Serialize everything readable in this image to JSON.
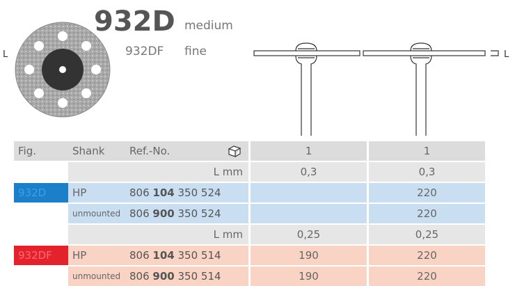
{
  "product": {
    "code": "932D",
    "grade": "medium",
    "variant_code": "932DF",
    "variant_grade": "fine",
    "dimension_label": "L"
  },
  "table": {
    "header": [
      "Fig.",
      "Shank",
      "Ref.-No.",
      "1",
      "1"
    ],
    "rows": [
      {
        "label": "L mm",
        "cells": [
          "0,3",
          "0,3"
        ]
      },
      {
        "fig": "932D",
        "shank": "HP",
        "ref": [
          "806",
          "104",
          "350 524"
        ],
        "cells": [
          null,
          "220"
        ]
      },
      {
        "shank": "unmounted",
        "ref": [
          "806",
          "900",
          "350 524"
        ],
        "cells": [
          null,
          "220"
        ]
      },
      {
        "label": "L mm",
        "cells": [
          "0,25",
          "0,25"
        ]
      },
      {
        "fig": "932DF",
        "shank": "HP",
        "ref": [
          "806",
          "104",
          "350 514"
        ],
        "cells": [
          "190",
          "220"
        ]
      },
      {
        "shank": "unmounted",
        "ref": [
          "806",
          "900",
          "350 514"
        ],
        "cells": [
          "190",
          "220"
        ]
      }
    ]
  }
}
